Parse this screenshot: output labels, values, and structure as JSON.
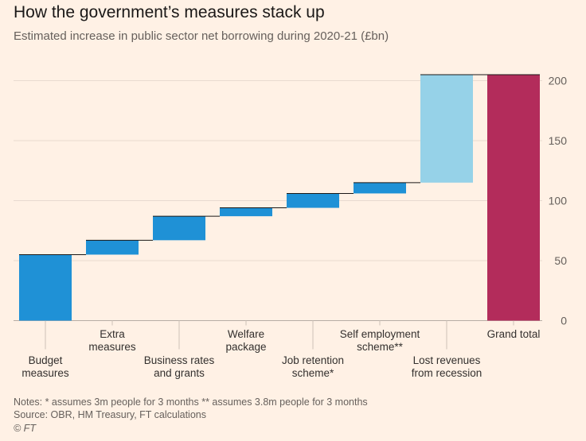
{
  "title": "How the government’s measures stack up",
  "subtitle": "Estimated increase in public sector net borrowing during 2020-21 (£bn)",
  "notes": "Notes: * assumes 3m people for 3 months  ** assumes 3.8m people for 3 months",
  "source": "Source: OBR, HM Treasury, FT calculations",
  "copyright": "© FT",
  "colors": {
    "background": "#FFF1E5",
    "measure": "#1F91D6",
    "recession": "#96D2E8",
    "total": "#B32C5B",
    "grid": "#E8DAD0",
    "axis_text": "#66605C"
  },
  "chart_data": {
    "type": "waterfall",
    "title": "How the government’s measures stack up",
    "subtitle": "Estimated increase in public sector net borrowing during 2020-21 (£bn)",
    "categories": [
      [
        "Budget",
        "measures"
      ],
      [
        "Extra",
        "measures"
      ],
      [
        "Business rates",
        "and grants"
      ],
      [
        "Welfare",
        "package"
      ],
      [
        "Job retention",
        "scheme*"
      ],
      [
        "Self employment",
        "scheme**"
      ],
      [
        "Lost revenues",
        "from recession"
      ],
      [
        "Grand total"
      ]
    ],
    "label_position": [
      "low",
      "high",
      "low",
      "high",
      "low",
      "high",
      "low",
      "high"
    ],
    "bars": [
      {
        "start": 0,
        "end": 55,
        "kind": "measure"
      },
      {
        "start": 55,
        "end": 67,
        "kind": "measure"
      },
      {
        "start": 67,
        "end": 87,
        "kind": "measure"
      },
      {
        "start": 87,
        "end": 94,
        "kind": "measure"
      },
      {
        "start": 94,
        "end": 106,
        "kind": "measure"
      },
      {
        "start": 106,
        "end": 115,
        "kind": "measure"
      },
      {
        "start": 115,
        "end": 205,
        "kind": "recession"
      },
      {
        "start": 0,
        "end": 205,
        "kind": "total"
      }
    ],
    "ylim": [
      0,
      210
    ],
    "yticks": [
      0,
      50,
      100,
      150,
      200
    ],
    "y_axis_side": "right",
    "grid": true
  }
}
